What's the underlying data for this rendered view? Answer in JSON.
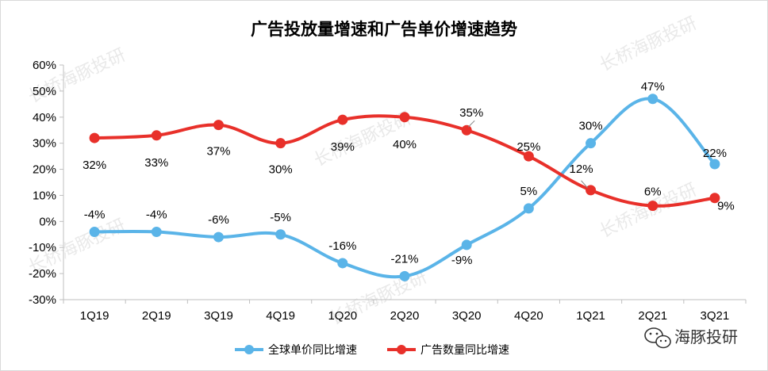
{
  "chart_data": {
    "type": "line",
    "title": "广告投放量增速和广告单价增速趋势",
    "categories": [
      "1Q19",
      "2Q19",
      "3Q19",
      "4Q19",
      "1Q20",
      "2Q20",
      "3Q20",
      "4Q20",
      "1Q21",
      "2Q21",
      "3Q21"
    ],
    "ylim": [
      -30,
      60
    ],
    "yticks": [
      -30,
      -20,
      -10,
      0,
      10,
      20,
      30,
      40,
      50,
      60
    ],
    "ytick_labels": [
      "-30%",
      "-20%",
      "-10%",
      "0%",
      "10%",
      "20%",
      "30%",
      "40%",
      "50%",
      "60%"
    ],
    "grid": false,
    "legend_position": "bottom",
    "series": [
      {
        "name": "全球单价同比增速",
        "color": "#5ab4e8",
        "values": [
          -4,
          -4,
          -6,
          -5,
          -16,
          -21,
          -9,
          5,
          30,
          47,
          22
        ],
        "labels": [
          "-4%",
          "-4%",
          "-6%",
          "-5%",
          "-16%",
          "-21%",
          "-9%",
          "5%",
          "30%",
          "47%",
          "22%"
        ]
      },
      {
        "name": "广告数量同比增速",
        "color": "#e8302a",
        "values": [
          32,
          33,
          37,
          30,
          39,
          40,
          35,
          25,
          12,
          6,
          9
        ],
        "labels": [
          "32%",
          "33%",
          "37%",
          "30%",
          "39%",
          "40%",
          "35%",
          "25%",
          "12%",
          "6%",
          "9%"
        ]
      }
    ]
  },
  "watermark": "长桥海豚投研",
  "brand": {
    "icon": "wechat-icon",
    "text": "海豚投研"
  }
}
